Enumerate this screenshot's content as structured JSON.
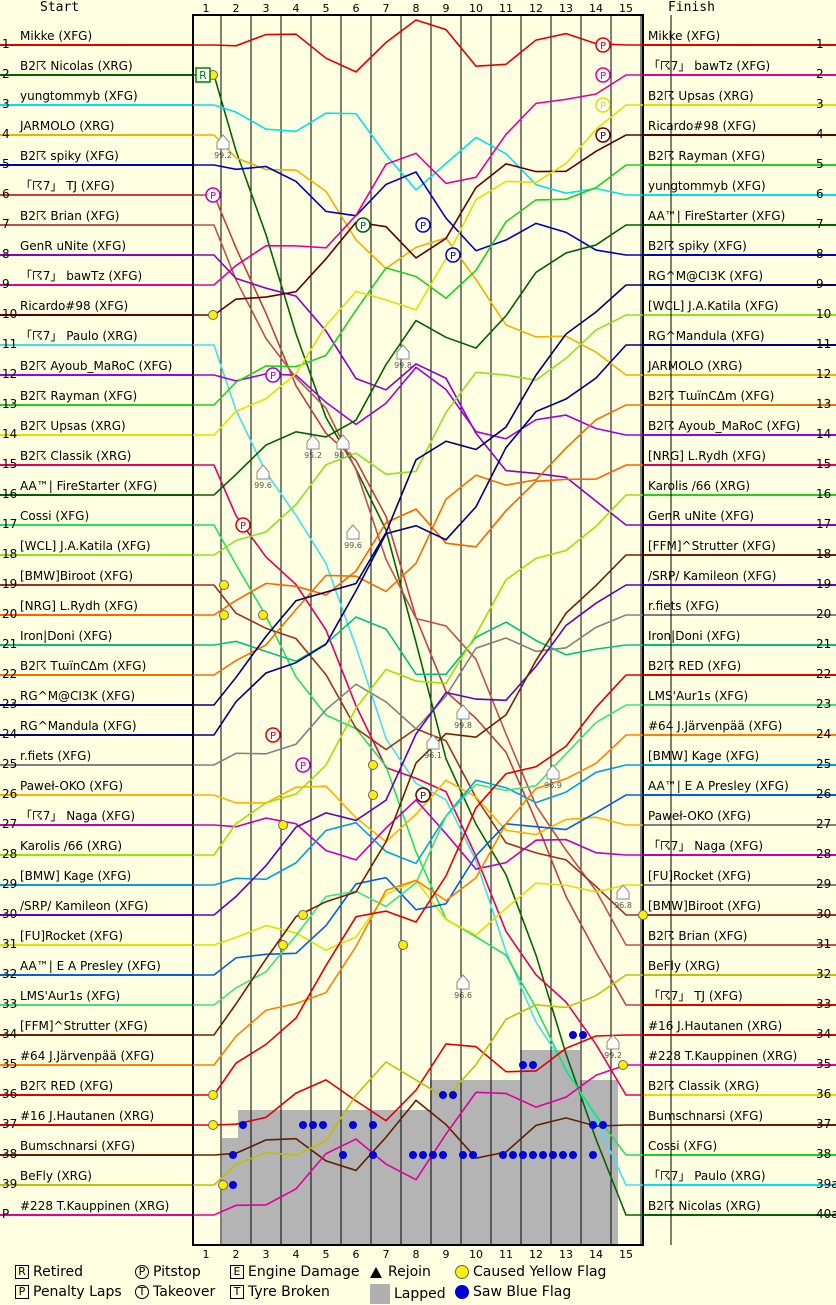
{
  "chart_data": {
    "type": "line",
    "title": "",
    "header_left": "Start",
    "header_right": "Finish",
    "laps": [
      "1",
      "2",
      "3",
      "4",
      "5",
      "6",
      "7",
      "8",
      "9",
      "10",
      "11",
      "12",
      "13",
      "14",
      "15"
    ],
    "start_grid": [
      {
        "pos": "1",
        "name": "Mikke (XFG)",
        "color": "#e00000"
      },
      {
        "pos": "2",
        "name": "B2☈ Nicolas (XRG)",
        "color": "#006400"
      },
      {
        "pos": "3",
        "name": "yungtommyb (XFG)",
        "color": "#00e0f0"
      },
      {
        "pos": "4",
        "name": "JARMOLO (XRG)",
        "color": "#f0b000"
      },
      {
        "pos": "5",
        "name": "B2☈ spiky (XFG)",
        "color": "#0000c0"
      },
      {
        "pos": "6",
        "name": "「☈7」 TJ (XFG)",
        "color": "#c04040"
      },
      {
        "pos": "7",
        "name": "B2☈ Brian (XFG)",
        "color": "#c05050"
      },
      {
        "pos": "8",
        "name": "GenR uNite (XFG)",
        "color": "#9000c0"
      },
      {
        "pos": "9",
        "name": "「☈7」 bawTz (XFG)",
        "color": "#e000a0"
      },
      {
        "pos": "10",
        "name": "Ricardo#98 (XFG)",
        "color": "#600000"
      },
      {
        "pos": "11",
        "name": "「☈7」 Paulo (XRG)",
        "color": "#40e0f0"
      },
      {
        "pos": "12",
        "name": "B2☈ Ayoub_MaRoC (XFG)",
        "color": "#a000e0"
      },
      {
        "pos": "13",
        "name": "B2☈ Rayman (XFG)",
        "color": "#20d020"
      },
      {
        "pos": "14",
        "name": "B2☈ Upsas (XRG)",
        "color": "#e0e000"
      },
      {
        "pos": "15",
        "name": "B2☈ Classik (XRG)",
        "color": "#e00060"
      },
      {
        "pos": "16",
        "name": "AA™| FireStarter (XFG)",
        "color": "#006000"
      },
      {
        "pos": "17",
        "name": "Cossi (XFG)",
        "color": "#20e060"
      },
      {
        "pos": "18",
        "name": "[WCL] J.A.Katila (XFG)",
        "color": "#90e020"
      },
      {
        "pos": "19",
        "name": "[BMW]Biroot (XFG)",
        "color": "#a03020"
      },
      {
        "pos": "20",
        "name": "[NRG] L.Rydh (XFG)",
        "color": "#ff6000"
      },
      {
        "pos": "21",
        "name": "Iron|Doni (XFG)",
        "color": "#00c080"
      },
      {
        "pos": "22",
        "name": "B2☈ TɯïnCΔm (XFG)",
        "color": "#f07000"
      },
      {
        "pos": "23",
        "name": "RG^M@CI3K (XFG)",
        "color": "#000070"
      },
      {
        "pos": "24",
        "name": "RG^Mandula (XFG)",
        "color": "#000080"
      },
      {
        "pos": "25",
        "name": "r.fiets (XFG)",
        "color": "#808080"
      },
      {
        "pos": "26",
        "name": "Paweł-OKO (XFG)",
        "color": "#ffb000"
      },
      {
        "pos": "27",
        "name": "「☈7」 Naga (XFG)",
        "color": "#c000c0"
      },
      {
        "pos": "28",
        "name": "Karolis /66 (XRG)",
        "color": "#a0e000"
      },
      {
        "pos": "29",
        "name": "[BMW] Kage (XFG)",
        "color": "#00a0e0"
      },
      {
        "pos": "30",
        "name": "/SRP/ Kamileon (XFG)",
        "color": "#6000c0"
      },
      {
        "pos": "31",
        "name": "[FU]Rocket (XFG)",
        "color": "#e0e000"
      },
      {
        "pos": "32",
        "name": "AA™| E A Presley (XFG)",
        "color": "#0060e0"
      },
      {
        "pos": "33",
        "name": "LMS'Aur1s (XFG)",
        "color": "#40e080"
      },
      {
        "pos": "34",
        "name": "[FFM]^Strutter (XFG)",
        "color": "#702000"
      },
      {
        "pos": "35",
        "name": "#64 J.Järvenpää (XFG)",
        "color": "#ff8000"
      },
      {
        "pos": "36",
        "name": "B2☈ RED (XFG)",
        "color": "#e00000"
      },
      {
        "pos": "37",
        "name": "#16 J.Hautanen (XRG)",
        "color": "#e00000"
      },
      {
        "pos": "38",
        "name": "Bumschnarsi (XFG)",
        "color": "#602000"
      },
      {
        "pos": "39",
        "name": "BeFly (XRG)",
        "color": "#c0c000"
      },
      {
        "pos": "P",
        "name": "#228 T.Kauppinen (XRG)",
        "color": "#e000a0"
      }
    ],
    "finish_order": [
      {
        "pos": "1",
        "name": "Mikke (XFG)",
        "color": "#e00000"
      },
      {
        "pos": "2",
        "name": "「☈7」 bawTz (XFG)",
        "color": "#e000a0"
      },
      {
        "pos": "3",
        "name": "B2☈ Upsas (XRG)",
        "color": "#e0e000"
      },
      {
        "pos": "4",
        "name": "Ricardo#98 (XFG)",
        "color": "#600000"
      },
      {
        "pos": "5",
        "name": "B2☈ Rayman (XFG)",
        "color": "#20d020"
      },
      {
        "pos": "6",
        "name": "yungtommyb (XFG)",
        "color": "#00e0f0"
      },
      {
        "pos": "7",
        "name": "AA™| FireStarter (XFG)",
        "color": "#006000"
      },
      {
        "pos": "8",
        "name": "B2☈ spiky (XFG)",
        "color": "#0000c0"
      },
      {
        "pos": "9",
        "name": "RG^M@CI3K (XFG)",
        "color": "#000070"
      },
      {
        "pos": "10",
        "name": "[WCL] J.A.Katila (XFG)",
        "color": "#90e020"
      },
      {
        "pos": "11",
        "name": "RG^Mandula (XFG)",
        "color": "#000080"
      },
      {
        "pos": "12",
        "name": "JARMOLO (XRG)",
        "color": "#f0b000"
      },
      {
        "pos": "13",
        "name": "B2☈ TɯïnCΔm (XFG)",
        "color": "#f07000"
      },
      {
        "pos": "14",
        "name": "B2☈ Ayoub_MaRoC (XFG)",
        "color": "#a000e0"
      },
      {
        "pos": "15",
        "name": "[NRG] L.Rydh (XFG)",
        "color": "#e00060"
      },
      {
        "pos": "16",
        "name": "Karolis /66 (XRG)",
        "color": "#20d020"
      },
      {
        "pos": "17",
        "name": "GenR uNite (XFG)",
        "color": "#9000c0"
      },
      {
        "pos": "18",
        "name": "[FFM]^Strutter (XFG)",
        "color": "#702000"
      },
      {
        "pos": "19",
        "name": "/SRP/ Kamileon (XFG)",
        "color": "#6000c0"
      },
      {
        "pos": "20",
        "name": "r.fiets (XFG)",
        "color": "#808080"
      },
      {
        "pos": "21",
        "name": "Iron|Doni (XFG)",
        "color": "#00c080"
      },
      {
        "pos": "22",
        "name": "B2☈ RED (XFG)",
        "color": "#e00000"
      },
      {
        "pos": "23",
        "name": "LMS'Aur1s (XFG)",
        "color": "#40e080"
      },
      {
        "pos": "24",
        "name": "#64 J.Järvenpää (XFG)",
        "color": "#ff8000"
      },
      {
        "pos": "25",
        "name": "[BMW] Kage (XFG)",
        "color": "#00a0e0"
      },
      {
        "pos": "26",
        "name": "AA™| E A Presley (XFG)",
        "color": "#0060e0"
      },
      {
        "pos": "27",
        "name": "Paweł-OKO (XFG)",
        "color": "#808080"
      },
      {
        "pos": "28",
        "name": "「☈7」 Naga (XFG)",
        "color": "#c000c0"
      },
      {
        "pos": "29",
        "name": "[FU]Rocket (XFG)",
        "color": "#808080"
      },
      {
        "pos": "30",
        "name": "[BMW]Biroot (XFG)",
        "color": "#a03020"
      },
      {
        "pos": "31",
        "name": "B2☈ Brian (XFG)",
        "color": "#c05050"
      },
      {
        "pos": "32",
        "name": "BeFly (XRG)",
        "color": "#c0c000"
      },
      {
        "pos": "33",
        "name": "「☈7」 TJ (XFG)",
        "color": "#e00000"
      },
      {
        "pos": "34",
        "name": "#16 J.Hautanen (XRG)",
        "color": "#e00000"
      },
      {
        "pos": "35",
        "name": "#228 T.Kauppinen (XRG)",
        "color": "#e000a0"
      },
      {
        "pos": "36",
        "name": "B2☈ Classik (XRG)",
        "color": "#e0e000"
      },
      {
        "pos": "37",
        "name": "Bumschnarsi (XFG)",
        "color": "#602000"
      },
      {
        "pos": "38",
        "name": "Cossi (XFG)",
        "color": "#20d020"
      },
      {
        "pos": "39a",
        "name": "「☈7」 Paulo (XRG)",
        "color": "#00e0f0"
      },
      {
        "pos": "40a",
        "name": "B2☈ Nicolas (XRG)",
        "color": "#006400"
      }
    ],
    "legend": [
      {
        "key": "R",
        "label": "Retired",
        "symbol": "square-letter"
      },
      {
        "key": "P",
        "label": "Penalty Laps",
        "symbol": "square-letter"
      },
      {
        "key": "P",
        "label": "Pitstop",
        "symbol": "circle-letter"
      },
      {
        "key": "T",
        "label": "Takeover",
        "symbol": "circle-letter"
      },
      {
        "key": "E",
        "label": "Engine Damage",
        "symbol": "house"
      },
      {
        "key": "T",
        "label": "Tyre Broken",
        "symbol": "house"
      },
      {
        "key": "",
        "label": "Rejoin",
        "symbol": "triangle"
      },
      {
        "key": "",
        "label": "Lapped",
        "symbol": "gray-box"
      },
      {
        "key": "",
        "label": "Caused Yellow Flag",
        "symbol": "yellow-dot"
      },
      {
        "key": "",
        "label": "Saw Blue Flag",
        "symbol": "blue-dot"
      }
    ],
    "engine_damage_labels": [
      "99.2",
      "99.6",
      "95.2",
      "98.0",
      "99.6",
      "96.1",
      "99.8",
      "99.8",
      "96.9",
      "96.8",
      "96.6",
      "99.2"
    ]
  }
}
